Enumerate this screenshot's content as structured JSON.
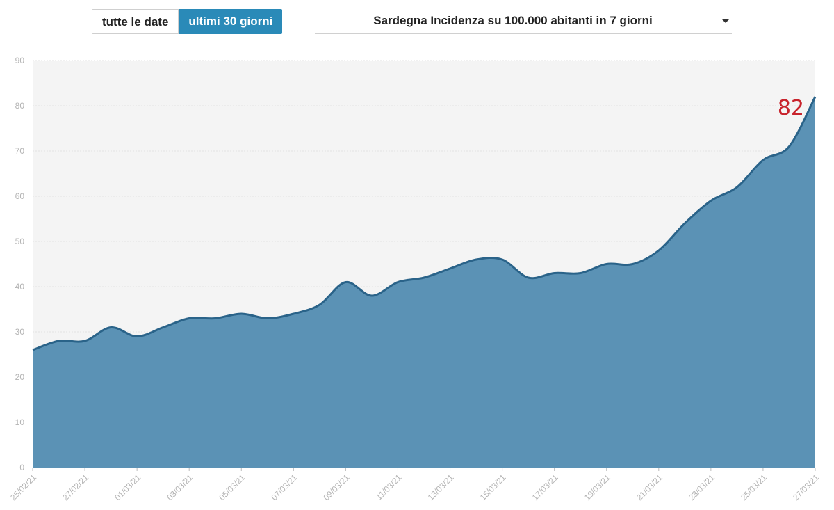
{
  "controls": {
    "all_dates_label": "tutte le date",
    "last30_label": "ultimi 30 giorni",
    "selected_metric": "Sardegna Incidenza su 100.000 abitanti in 7 giorni",
    "active_button_color": "#2a8ab8"
  },
  "chart_data": {
    "type": "area",
    "x": [
      "25/02/21",
      "26/02/21",
      "27/02/21",
      "28/02/21",
      "01/03/21",
      "02/03/21",
      "03/03/21",
      "04/03/21",
      "05/03/21",
      "06/03/21",
      "07/03/21",
      "08/03/21",
      "09/03/21",
      "10/03/21",
      "11/03/21",
      "12/03/21",
      "13/03/21",
      "14/03/21",
      "15/03/21",
      "16/03/21",
      "17/03/21",
      "18/03/21",
      "19/03/21",
      "20/03/21",
      "21/03/21",
      "22/03/21",
      "23/03/21",
      "24/03/21",
      "25/03/21",
      "26/03/21",
      "27/03/21"
    ],
    "values": [
      26,
      28,
      28,
      31,
      29,
      31,
      33,
      33,
      34,
      33,
      34,
      36,
      41,
      38,
      41,
      42,
      44,
      46,
      46,
      42,
      43,
      43,
      45,
      45,
      48,
      54,
      59,
      62,
      68,
      71,
      82
    ],
    "x_tick_labels": [
      "25/02/21",
      "27/02/21",
      "01/03/21",
      "03/03/21",
      "05/03/21",
      "07/03/21",
      "09/03/21",
      "11/03/21",
      "13/03/21",
      "15/03/21",
      "17/03/21",
      "19/03/21",
      "21/03/21",
      "23/03/21",
      "25/03/21",
      "27/03/21"
    ],
    "y_ticks": [
      0,
      10,
      20,
      30,
      40,
      50,
      60,
      70,
      80,
      90
    ],
    "ylim": [
      0,
      90
    ],
    "last_value_label": "82",
    "grid": true,
    "colors": {
      "fill": "#5b92b5",
      "line": "#2a6389",
      "plot_bg": "#f4f4f4",
      "label": "#c8232c"
    }
  }
}
